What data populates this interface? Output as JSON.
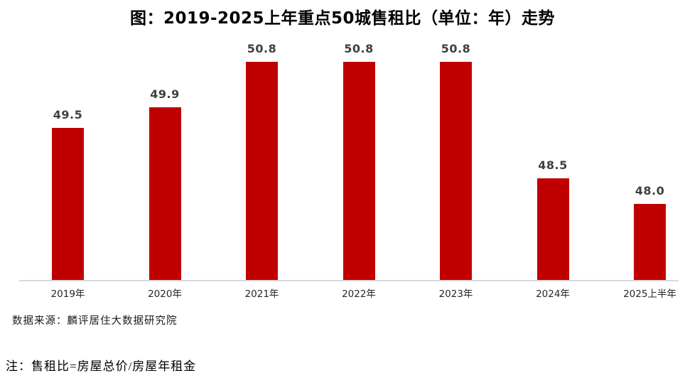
{
  "chart_data": {
    "type": "bar",
    "title": "图：2019-2025上年重点50城售租比（单位：年）走势",
    "categories": [
      "2019年",
      "2020年",
      "2021年",
      "2022年",
      "2023年",
      "2024年",
      "2025上半年"
    ],
    "values": [
      49.5,
      49.9,
      50.8,
      50.8,
      50.8,
      48.5,
      48.0
    ],
    "value_label_decimals": 1,
    "xlabel": "",
    "ylabel": "",
    "ylim": [
      46.5,
      51.5
    ],
    "grid": false,
    "legend_position": "none",
    "bar_color": "#c00000",
    "value_label_color": "#3f3f3f",
    "axis_line_color": "#d9d9d9",
    "x_label_color": "#262626"
  },
  "footer": {
    "source": "数据来源：麟评居住大数据研究院",
    "note": "注：售租比=房屋总价/房屋年租金"
  }
}
